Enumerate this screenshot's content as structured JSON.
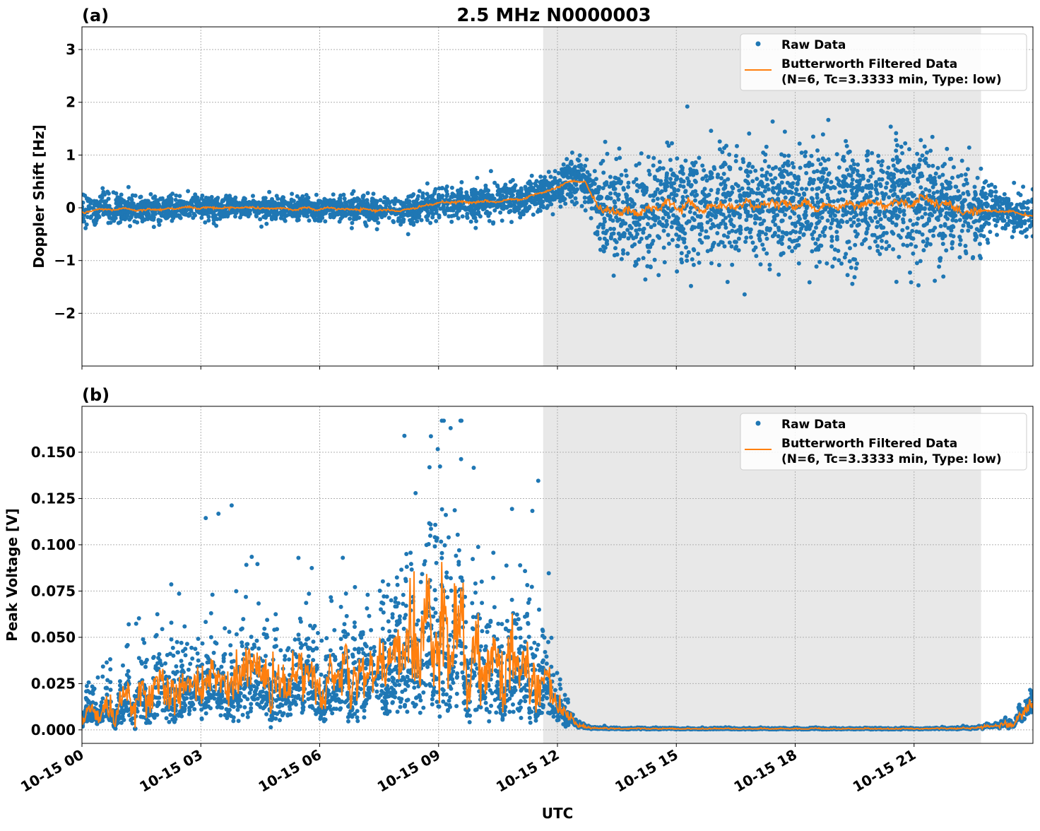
{
  "chart_data": {
    "type": "scatter",
    "suptitle": "2.5 MHz N0000003",
    "xlabel": "UTC",
    "x_units": "hours since 10-15 00:00 UTC",
    "xlim": [
      0,
      24
    ],
    "xticks": [
      0,
      3,
      6,
      9,
      12,
      15,
      18,
      21
    ],
    "xtick_labels": [
      "10-15 00",
      "10-15 03",
      "10-15 06",
      "10-15 09",
      "10-15 12",
      "10-15 15",
      "10-15 18",
      "10-15 21"
    ],
    "shaded_interval_hours": [
      11.64,
      22.69
    ],
    "grid": true,
    "colors": {
      "raw": "#1f77b4",
      "filtered": "#ff7f0e",
      "shade": "#e8e8e8"
    },
    "legend": {
      "placement": "top-right",
      "raw_label": "Raw Data",
      "filtered_label_line1": "Butterworth Filtered Data",
      "filtered_label_line2": "(N=6, Tc=3.3333 min, Type: low)"
    },
    "panels": [
      {
        "label": "(a)",
        "ylabel": "Doppler Shift [Hz]",
        "ylim": [
          -3.0,
          3.43
        ],
        "yticks": [
          -2,
          -1,
          0,
          1,
          2,
          3
        ],
        "ytick_labels": [
          "−2",
          "−1",
          "0",
          "1",
          "2",
          "3"
        ],
        "filtered_keypoints": {
          "hours": [
            0,
            1,
            2,
            3,
            4,
            5,
            6,
            7,
            8,
            9,
            10,
            11,
            11.7,
            12.3,
            12.7,
            13.0,
            14,
            16,
            18,
            20,
            21.3,
            22,
            22.7,
            23.5,
            24
          ],
          "values": [
            -0.08,
            -0.03,
            -0.02,
            0.0,
            0.0,
            -0.01,
            -0.02,
            -0.03,
            -0.05,
            0.08,
            0.12,
            0.15,
            0.3,
            0.5,
            0.5,
            -0.02,
            -0.05,
            0.05,
            0.05,
            0.05,
            0.15,
            0.0,
            -0.05,
            -0.1,
            -0.15
          ]
        },
        "raw_spread_keypoints": {
          "hours": [
            0,
            1,
            5,
            8,
            9,
            11,
            12.7,
            13.2,
            15,
            18,
            21,
            22.7,
            23.2,
            24
          ],
          "values": [
            0.2,
            0.12,
            0.1,
            0.12,
            0.14,
            0.16,
            0.2,
            0.45,
            0.5,
            0.55,
            0.5,
            0.35,
            0.18,
            0.22
          ]
        },
        "raw_point_count": 4500
      },
      {
        "label": "(b)",
        "ylabel": "Peak Voltage [V]",
        "ylim": [
          -0.0073,
          0.1748
        ],
        "yticks": [
          0,
          0.025,
          0.05,
          0.075,
          0.1,
          0.125,
          0.15
        ],
        "ytick_labels": [
          "0.000",
          "0.025",
          "0.050",
          "0.075",
          "0.100",
          "0.125",
          "0.150"
        ],
        "filtered_keypoints": {
          "hours": [
            0,
            0.5,
            1,
            2,
            3,
            4,
            5,
            6,
            7,
            8,
            8.5,
            9,
            9.5,
            10,
            11,
            11.5,
            12,
            12.5,
            13,
            15,
            18,
            21,
            22.5,
            23,
            23.5,
            24
          ],
          "values": [
            0.006,
            0.01,
            0.015,
            0.022,
            0.025,
            0.03,
            0.028,
            0.026,
            0.03,
            0.04,
            0.05,
            0.052,
            0.042,
            0.035,
            0.035,
            0.032,
            0.012,
            0.003,
            0.0008,
            0.0006,
            0.0006,
            0.0006,
            0.001,
            0.002,
            0.004,
            0.012
          ]
        },
        "raw_point_count": 4500
      }
    ]
  }
}
